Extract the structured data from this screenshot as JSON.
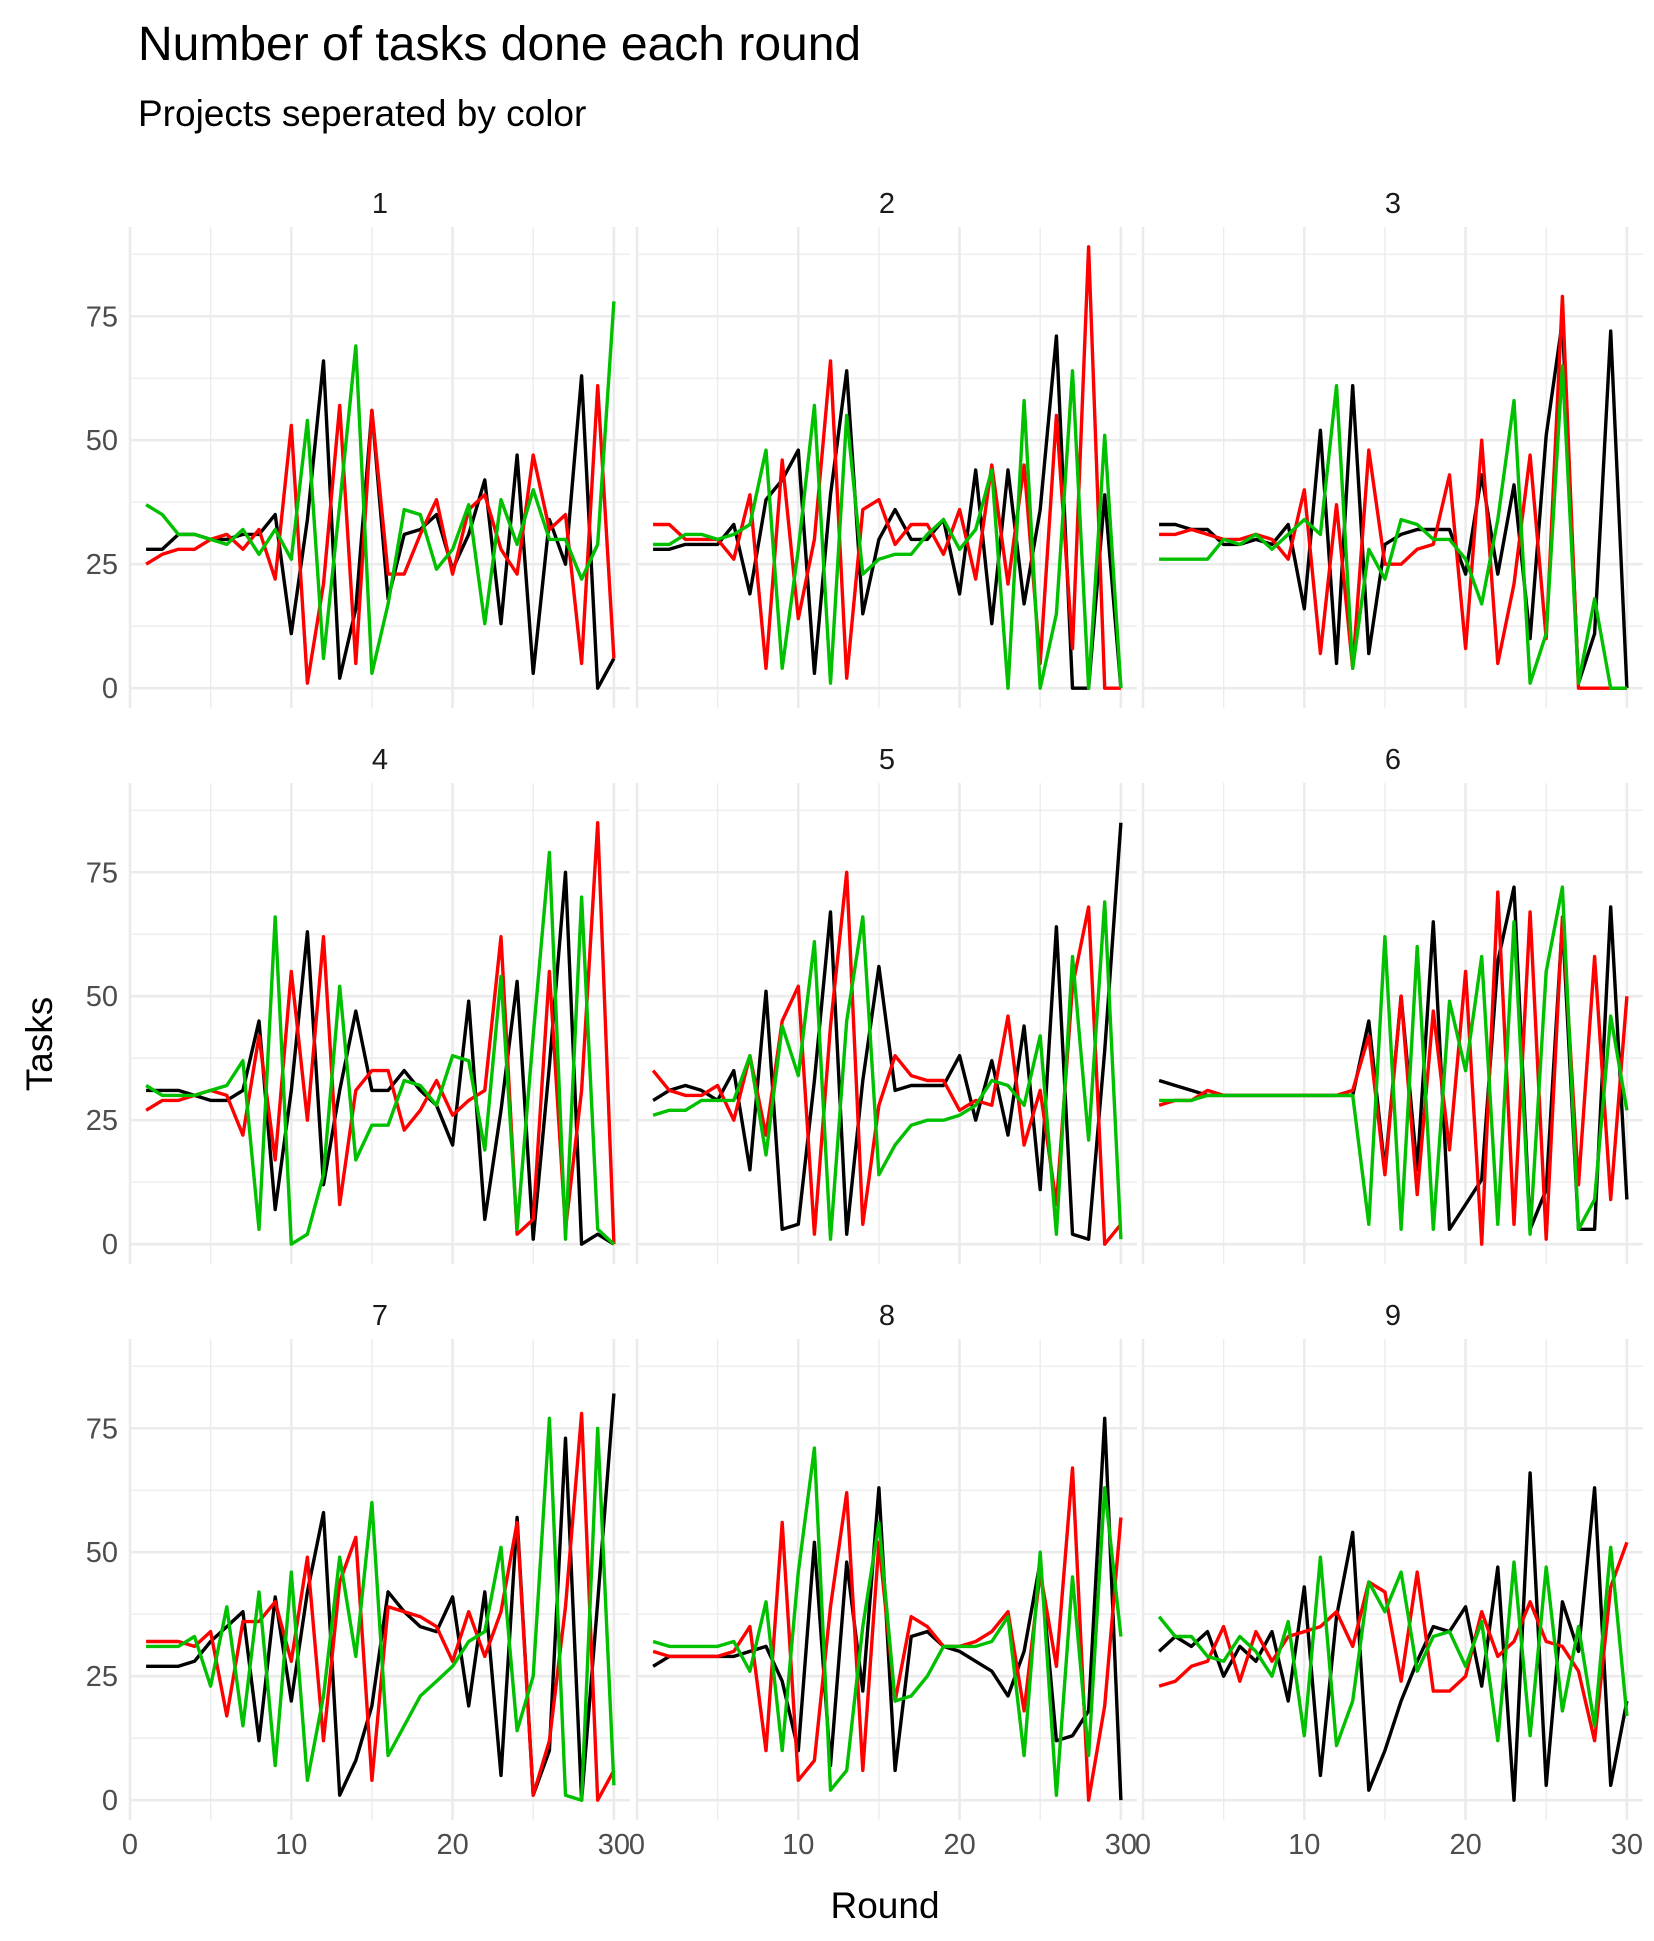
{
  "chart_data": {
    "type": "line",
    "title": "Number of tasks done each round",
    "subtitle": "Projects seperated by color",
    "xlabel": "Round",
    "ylabel": "Tasks",
    "xlim": [
      0,
      31
    ],
    "ylim": [
      -4,
      93
    ],
    "x_ticks": [
      0,
      10,
      20,
      30
    ],
    "y_ticks": [
      0,
      25,
      50,
      75
    ],
    "grid": true,
    "legend": "none",
    "series_colors": [
      "#000000",
      "#ff0000",
      "#00c000"
    ],
    "x": [
      1,
      2,
      3,
      4,
      5,
      6,
      7,
      8,
      9,
      10,
      11,
      12,
      13,
      14,
      15,
      16,
      17,
      18,
      19,
      20,
      21,
      22,
      23,
      24,
      25,
      26,
      27,
      28,
      29,
      30
    ],
    "panels": [
      {
        "label": "1",
        "series": [
          {
            "color": "#000000",
            "values": [
              28,
              28,
              31,
              31,
              30,
              30,
              31,
              31,
              35,
              11,
              34,
              66,
              2,
              16,
              56,
              18,
              31,
              32,
              35,
              24,
              31,
              42,
              13,
              47,
              3,
              34,
              25,
              63,
              0,
              6
            ]
          },
          {
            "color": "#ff0000",
            "values": [
              25,
              27,
              28,
              28,
              30,
              31,
              28,
              32,
              22,
              53,
              1,
              21,
              57,
              5,
              56,
              23,
              23,
              31,
              38,
              23,
              36,
              39,
              28,
              23,
              47,
              32,
              35,
              5,
              61,
              6
            ]
          },
          {
            "color": "#00c000",
            "values": [
              37,
              35,
              31,
              31,
              30,
              29,
              32,
              27,
              32,
              26,
              54,
              6,
              37,
              69,
              3,
              17,
              36,
              35,
              24,
              28,
              37,
              13,
              38,
              29,
              40,
              30,
              30,
              22,
              29,
              78
            ]
          }
        ]
      },
      {
        "label": "2",
        "series": [
          {
            "color": "#000000",
            "values": [
              28,
              28,
              29,
              29,
              29,
              33,
              19,
              38,
              42,
              48,
              3,
              39,
              64,
              15,
              30,
              36,
              30,
              30,
              34,
              19,
              44,
              13,
              44,
              17,
              36,
              71,
              0,
              0,
              39,
              0
            ]
          },
          {
            "color": "#ff0000",
            "values": [
              33,
              33,
              30,
              30,
              30,
              26,
              39,
              4,
              46,
              14,
              30,
              66,
              2,
              36,
              38,
              29,
              33,
              33,
              27,
              36,
              22,
              45,
              21,
              45,
              5,
              55,
              8,
              89,
              0,
              0
            ]
          },
          {
            "color": "#00c000",
            "values": [
              29,
              29,
              31,
              31,
              30,
              31,
              33,
              48,
              4,
              28,
              57,
              1,
              55,
              23,
              26,
              27,
              27,
              31,
              34,
              28,
              32,
              44,
              0,
              58,
              0,
              15,
              64,
              0,
              51,
              0
            ]
          }
        ]
      },
      {
        "label": "3",
        "series": [
          {
            "color": "#000000",
            "values": [
              33,
              33,
              32,
              32,
              29,
              29,
              30,
              29,
              33,
              16,
              52,
              5,
              61,
              7,
              29,
              31,
              32,
              32,
              32,
              23,
              43,
              23,
              41,
              10,
              51,
              74,
              1,
              11,
              72,
              0
            ]
          },
          {
            "color": "#ff0000",
            "values": [
              31,
              31,
              32,
              31,
              30,
              30,
              31,
              30,
              26,
              40,
              7,
              37,
              4,
              48,
              25,
              25,
              28,
              29,
              43,
              8,
              50,
              5,
              21,
              47,
              10,
              79,
              0,
              0,
              0,
              0
            ]
          },
          {
            "color": "#00c000",
            "values": [
              26,
              26,
              26,
              26,
              30,
              29,
              31,
              28,
              31,
              34,
              31,
              61,
              4,
              28,
              22,
              34,
              33,
              30,
              30,
              26,
              17,
              34,
              58,
              1,
              11,
              65,
              1,
              18,
              0,
              0
            ]
          }
        ]
      },
      {
        "label": "4",
        "series": [
          {
            "color": "#000000",
            "values": [
              31,
              31,
              31,
              30,
              29,
              29,
              31,
              45,
              7,
              31,
              63,
              12,
              31,
              47,
              31,
              31,
              35,
              31,
              28,
              20,
              49,
              5,
              27,
              53,
              1,
              36,
              75,
              0,
              2,
              0
            ]
          },
          {
            "color": "#ff0000",
            "values": [
              27,
              29,
              29,
              30,
              31,
              30,
              22,
              42,
              17,
              55,
              25,
              62,
              8,
              31,
              35,
              35,
              23,
              27,
              33,
              26,
              29,
              31,
              62,
              2,
              5,
              55,
              3,
              31,
              85,
              0
            ]
          },
          {
            "color": "#00c000",
            "values": [
              32,
              30,
              30,
              30,
              31,
              32,
              37,
              3,
              66,
              0,
              2,
              14,
              52,
              17,
              24,
              24,
              33,
              32,
              28,
              38,
              37,
              19,
              54,
              3,
              42,
              79,
              1,
              70,
              3,
              0
            ]
          }
        ]
      },
      {
        "label": "5",
        "series": [
          {
            "color": "#000000",
            "values": [
              29,
              31,
              32,
              31,
              29,
              35,
              15,
              51,
              3,
              4,
              33,
              67,
              2,
              33,
              56,
              31,
              32,
              32,
              32,
              38,
              25,
              37,
              22,
              44,
              11,
              64,
              2,
              1,
              39,
              85
            ]
          },
          {
            "color": "#ff0000",
            "values": [
              35,
              31,
              30,
              30,
              32,
              25,
              38,
              22,
              45,
              52,
              2,
              44,
              75,
              4,
              28,
              38,
              34,
              33,
              33,
              27,
              29,
              28,
              46,
              20,
              31,
              8,
              52,
              68,
              0,
              4
            ]
          },
          {
            "color": "#00c000",
            "values": [
              26,
              27,
              27,
              29,
              29,
              29,
              38,
              18,
              44,
              34,
              61,
              1,
              45,
              66,
              14,
              20,
              24,
              25,
              25,
              26,
              28,
              33,
              32,
              28,
              42,
              2,
              58,
              21,
              69,
              1
            ]
          }
        ]
      },
      {
        "label": "6",
        "series": [
          {
            "color": "#000000",
            "values": [
              33,
              32,
              31,
              30,
              30,
              30,
              30,
              30,
              30,
              30,
              30,
              30,
              30,
              45,
              15,
              50,
              15,
              65,
              3,
              8,
              13,
              57,
              72,
              3,
              11,
              65,
              3,
              3,
              68,
              9
            ]
          },
          {
            "color": "#ff0000",
            "values": [
              28,
              29,
              29,
              31,
              30,
              30,
              30,
              30,
              30,
              30,
              30,
              30,
              31,
              42,
              14,
              50,
              10,
              47,
              19,
              55,
              0,
              71,
              4,
              67,
              1,
              66,
              12,
              58,
              9,
              50
            ]
          },
          {
            "color": "#00c000",
            "values": [
              29,
              29,
              29,
              30,
              30,
              30,
              30,
              30,
              30,
              30,
              30,
              30,
              30,
              4,
              62,
              3,
              60,
              3,
              49,
              35,
              58,
              4,
              65,
              2,
              55,
              72,
              3,
              9,
              46,
              27
            ]
          }
        ]
      },
      {
        "label": "7",
        "series": [
          {
            "color": "#000000",
            "values": [
              27,
              27,
              27,
              28,
              32,
              35,
              38,
              12,
              41,
              20,
              42,
              58,
              1,
              8,
              19,
              42,
              38,
              35,
              34,
              41,
              19,
              42,
              5,
              57,
              1,
              10,
              73,
              0,
              40,
              82
            ]
          },
          {
            "color": "#ff0000",
            "values": [
              32,
              32,
              32,
              31,
              34,
              17,
              36,
              36,
              40,
              28,
              49,
              12,
              44,
              53,
              4,
              39,
              38,
              37,
              35,
              28,
              38,
              29,
              38,
              56,
              1,
              12,
              39,
              78,
              0,
              6
            ]
          },
          {
            "color": "#00c000",
            "values": [
              31,
              31,
              31,
              33,
              23,
              39,
              15,
              42,
              7,
              46,
              4,
              21,
              49,
              29,
              60,
              9,
              15,
              21,
              24,
              27,
              32,
              34,
              51,
              14,
              25,
              77,
              1,
              0,
              75,
              3
            ]
          }
        ]
      },
      {
        "label": "8",
        "series": [
          {
            "color": "#000000",
            "values": [
              27,
              29,
              29,
              29,
              29,
              29,
              30,
              31,
              24,
              10,
              52,
              7,
              48,
              22,
              63,
              6,
              33,
              34,
              31,
              30,
              28,
              26,
              21,
              30,
              48,
              12,
              13,
              18,
              77,
              0
            ]
          },
          {
            "color": "#ff0000",
            "values": [
              30,
              29,
              29,
              29,
              29,
              30,
              35,
              10,
              56,
              4,
              8,
              39,
              62,
              6,
              52,
              20,
              37,
              35,
              31,
              31,
              32,
              34,
              38,
              18,
              46,
              27,
              67,
              0,
              19,
              57
            ]
          },
          {
            "color": "#00c000",
            "values": [
              32,
              31,
              31,
              31,
              31,
              32,
              26,
              40,
              10,
              46,
              71,
              2,
              6,
              35,
              56,
              20,
              21,
              25,
              31,
              31,
              31,
              32,
              37,
              9,
              50,
              1,
              45,
              9,
              63,
              33
            ]
          }
        ]
      },
      {
        "label": "9",
        "series": [
          {
            "color": "#000000",
            "values": [
              30,
              33,
              31,
              34,
              25,
              31,
              28,
              34,
              20,
              43,
              5,
              37,
              54,
              2,
              10,
              20,
              28,
              35,
              34,
              39,
              23,
              47,
              0,
              66,
              3,
              40,
              30,
              63,
              3,
              20
            ]
          },
          {
            "color": "#ff0000",
            "values": [
              23,
              24,
              27,
              28,
              35,
              24,
              34,
              28,
              33,
              34,
              35,
              38,
              31,
              44,
              42,
              24,
              46,
              22,
              22,
              25,
              38,
              29,
              32,
              40,
              32,
              31,
              26,
              12,
              43,
              52
            ]
          },
          {
            "color": "#00c000",
            "values": [
              37,
              33,
              33,
              29,
              28,
              33,
              30,
              25,
              36,
              13,
              49,
              11,
              20,
              44,
              38,
              46,
              26,
              33,
              34,
              27,
              36,
              12,
              48,
              13,
              47,
              18,
              35,
              15,
              51,
              17
            ]
          }
        ]
      }
    ]
  }
}
